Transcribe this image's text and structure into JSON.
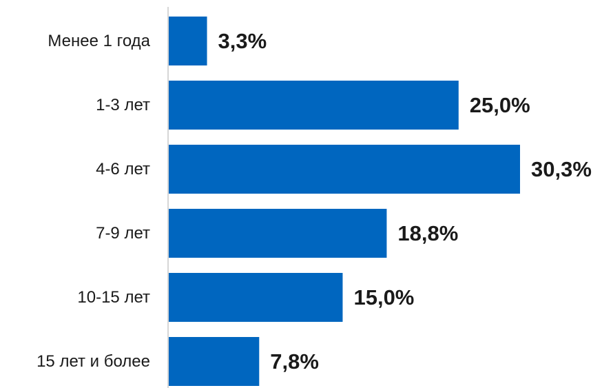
{
  "chart_data": {
    "type": "bar",
    "orientation": "horizontal",
    "categories": [
      "Менее 1 года",
      "1-3 лет",
      "4-6 лет",
      "7-9 лет",
      "10-15 лет",
      "15 лет и более"
    ],
    "values": [
      3.3,
      25.0,
      30.3,
      18.8,
      15.0,
      7.8
    ],
    "value_labels": [
      "3,3%",
      "25,0%",
      "30,3%",
      "18,8%",
      "15,0%",
      "7,8%"
    ],
    "title": "",
    "xlabel": "",
    "ylabel": "",
    "xlim": [
      0,
      30.3
    ],
    "grid": false,
    "legend": "none",
    "bar_color": "#0066BF",
    "axis_color": "#C8C8C8"
  }
}
